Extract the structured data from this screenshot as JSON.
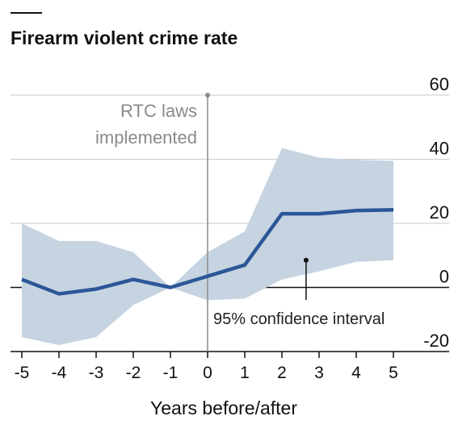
{
  "chart_data": {
    "type": "line",
    "title": "Firearm violent crime rate",
    "xlabel": "Years before/after",
    "ylabel": "",
    "x": [
      -5,
      -4,
      -3,
      -2,
      -1,
      0,
      1,
      2,
      3,
      4,
      5
    ],
    "x_tick_labels": [
      "-5",
      "-4",
      "-3",
      "-2",
      "-1",
      "0",
      "1",
      "2",
      "3",
      "4",
      "5"
    ],
    "y_ticks": [
      60,
      40,
      20,
      0,
      -20
    ],
    "y_tick_labels": [
      "60",
      "40",
      "20",
      "0",
      "-20"
    ],
    "xlim": [
      -5.2,
      6
    ],
    "ylim": [
      -20,
      60
    ],
    "grid": true,
    "series": [
      {
        "values": [
          2.5,
          -2,
          -0.5,
          2.5,
          0,
          3.5,
          7,
          23,
          23,
          24,
          24.2
        ],
        "color": "#2b5797"
      }
    ],
    "band": {
      "upper": [
        20,
        14.5,
        14.5,
        11,
        0,
        11,
        17.5,
        43.5,
        40.5,
        39.8,
        39.5
      ],
      "lower": [
        -15.5,
        -18,
        -15.5,
        -5.5,
        0,
        -4,
        -3.5,
        2.5,
        5,
        8,
        8.5
      ],
      "color": "#c6d4e1"
    },
    "annotations": {
      "rtc_line1": "RTC laws",
      "rtc_line2": "implemented",
      "ci_label": "95% confidence interval"
    },
    "colors": {
      "line": "#2b5797",
      "band": "#c6d4e1",
      "grid": "#c8c8c8",
      "event_line": "#8a8a8a",
      "text": "#111111"
    }
  }
}
